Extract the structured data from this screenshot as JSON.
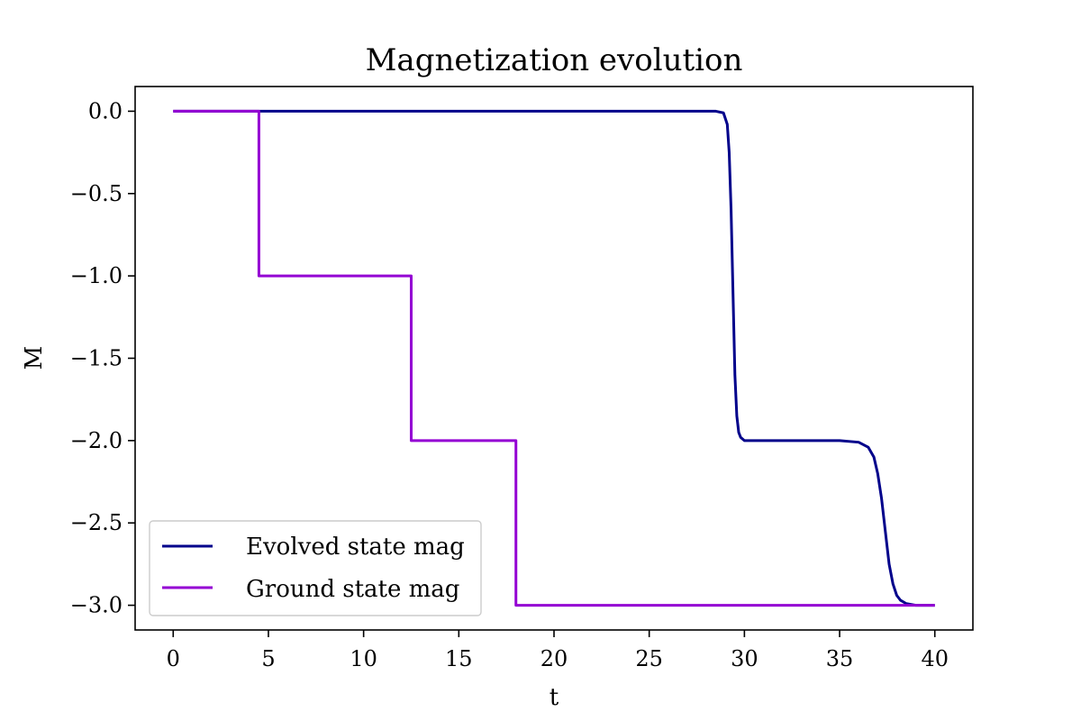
{
  "chart_data": {
    "type": "line",
    "title": "Magnetization evolution",
    "xlabel": "t",
    "ylabel": "M",
    "xlim": [
      -2,
      42
    ],
    "ylim": [
      -3.15,
      0.15
    ],
    "xticks": [
      0,
      5,
      10,
      15,
      20,
      25,
      30,
      35,
      40
    ],
    "yticks": [
      0.0,
      -0.5,
      -1.0,
      -1.5,
      -2.0,
      -2.5,
      -3.0
    ],
    "xtick_labels": [
      "0",
      "5",
      "10",
      "15",
      "20",
      "25",
      "30",
      "35",
      "40"
    ],
    "ytick_labels": [
      "0.0",
      "−0.5",
      "−1.0",
      "−1.5",
      "−2.0",
      "−2.5",
      "−3.0"
    ],
    "grid": false,
    "legend": "lower-left",
    "series": [
      {
        "name": "Evolved state mag",
        "color": "#00008b",
        "x": [
          0,
          5,
          10,
          15,
          20,
          25,
          28.5,
          28.9,
          29.1,
          29.2,
          29.3,
          29.4,
          29.5,
          29.6,
          29.7,
          29.8,
          30.0,
          30.3,
          31,
          33,
          35,
          36,
          36.5,
          36.8,
          37.0,
          37.2,
          37.4,
          37.5,
          37.6,
          37.8,
          38.0,
          38.2,
          38.5,
          39.0,
          39.5,
          40
        ],
        "y": [
          0,
          0,
          0,
          0,
          0,
          0,
          0,
          -0.01,
          -0.08,
          -0.25,
          -0.6,
          -1.1,
          -1.6,
          -1.85,
          -1.95,
          -1.98,
          -2.0,
          -2.0,
          -2.0,
          -2.0,
          -2.0,
          -2.01,
          -2.04,
          -2.1,
          -2.2,
          -2.35,
          -2.55,
          -2.65,
          -2.75,
          -2.87,
          -2.94,
          -2.97,
          -2.99,
          -3.0,
          -3.0,
          -3.0
        ]
      },
      {
        "name": "Ground state mag",
        "color": "#9400d3",
        "x": [
          0,
          4.5,
          4.5,
          12.5,
          12.5,
          18,
          18,
          40
        ],
        "y": [
          0,
          0,
          -1,
          -1,
          -2,
          -2,
          -3,
          -3
        ]
      }
    ]
  }
}
